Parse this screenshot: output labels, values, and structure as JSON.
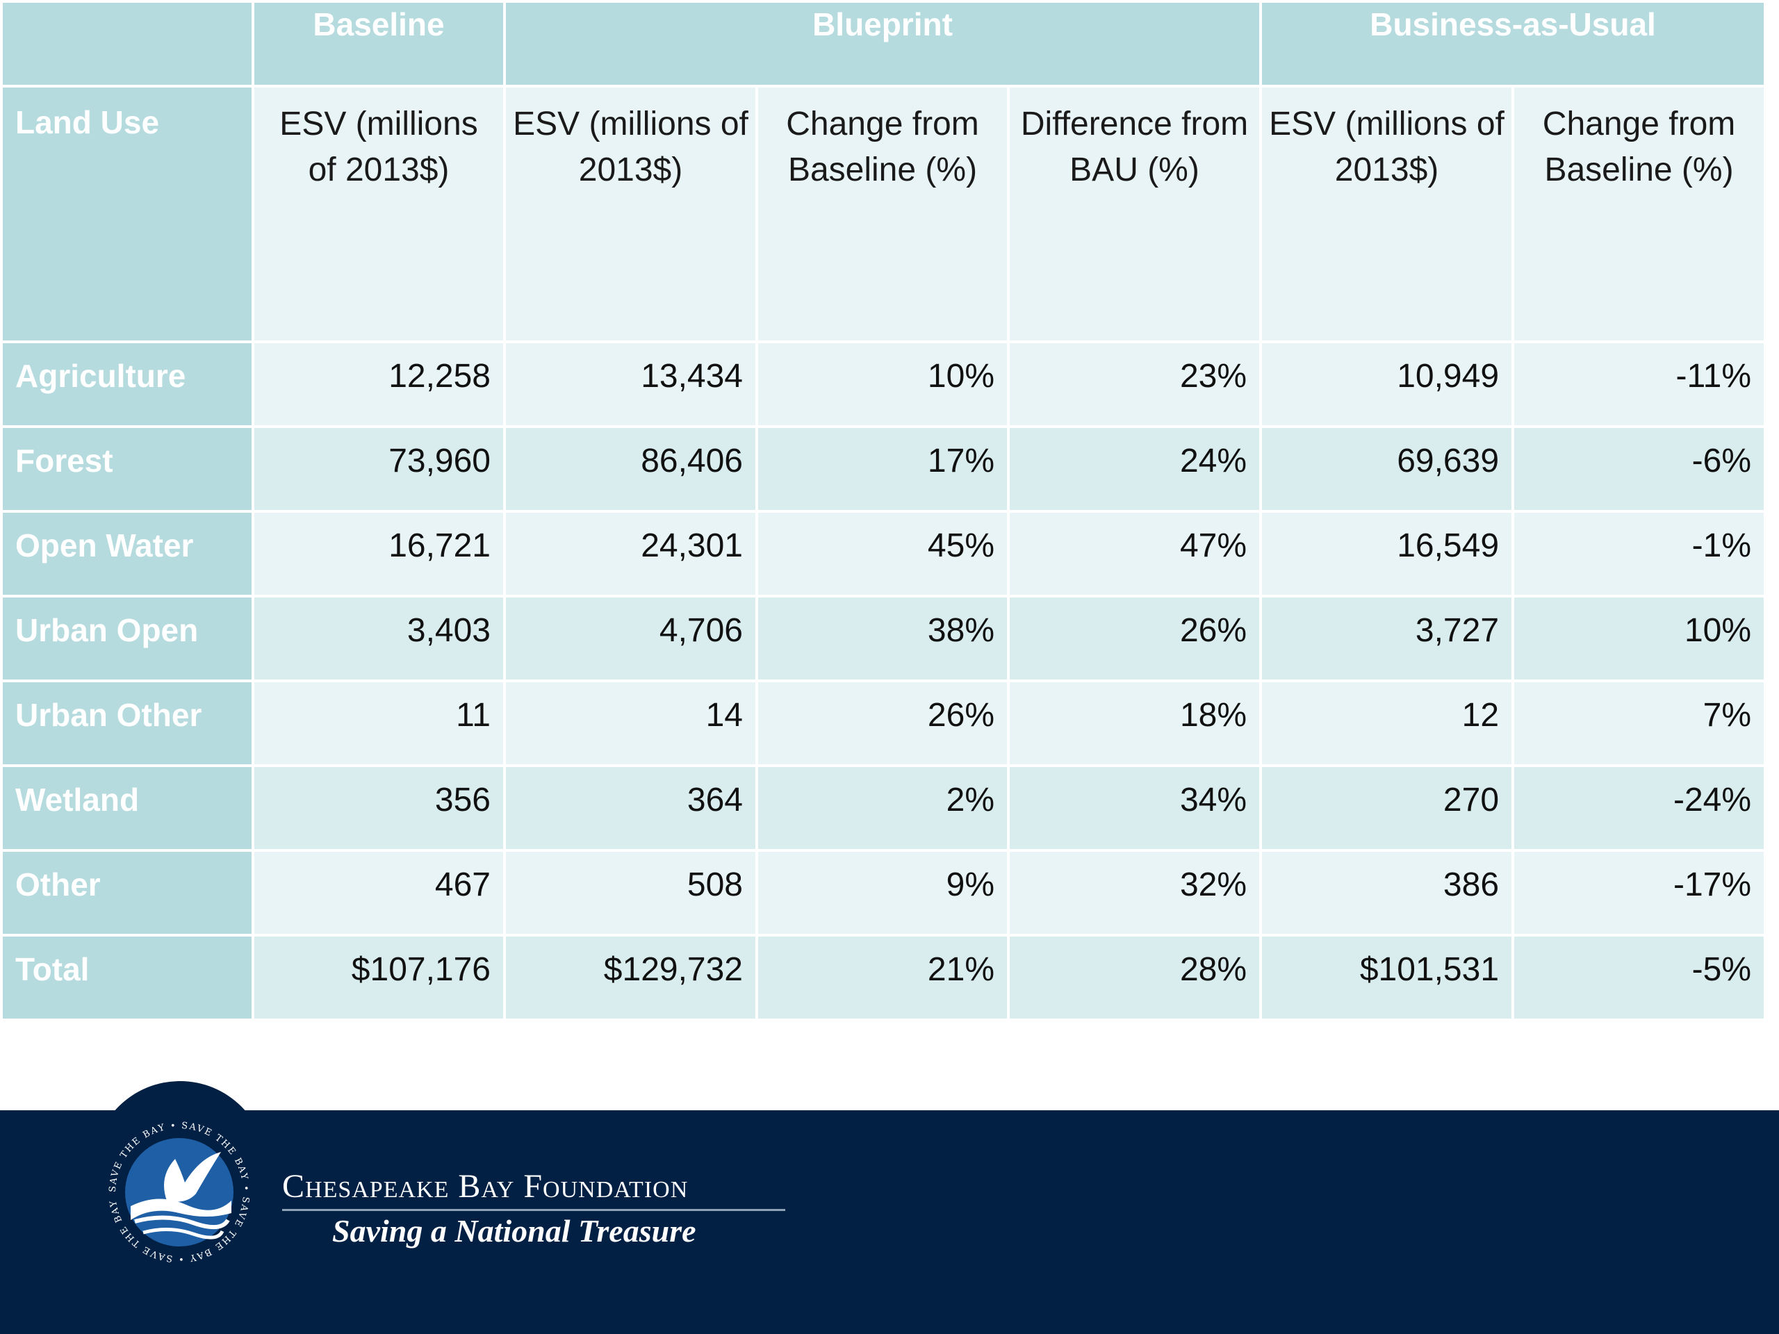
{
  "table": {
    "group_headers": [
      "Baseline",
      "Blueprint",
      "Business-as-Usual"
    ],
    "first_col_header": "Land Use",
    "sub_headers": [
      "ESV (millions of 2013$)",
      "ESV (millions of 2013$)",
      "Change from Baseline (%)",
      "Difference from BAU (%)",
      "ESV (millions of 2013$)",
      "Change from Baseline (%)"
    ],
    "rows": [
      {
        "land_use": "Agriculture",
        "values": [
          "12,258",
          "13,434",
          "10%",
          "23%",
          "10,949",
          "-11%"
        ]
      },
      {
        "land_use": "Forest",
        "values": [
          "73,960",
          "86,406",
          "17%",
          "24%",
          "69,639",
          "-6%"
        ]
      },
      {
        "land_use": "Open Water",
        "values": [
          "16,721",
          "24,301",
          "45%",
          "47%",
          "16,549",
          "-1%"
        ]
      },
      {
        "land_use": "Urban Open",
        "values": [
          "3,403",
          "4,706",
          "38%",
          "26%",
          "3,727",
          "10%"
        ]
      },
      {
        "land_use": "Urban Other",
        "values": [
          "11",
          "14",
          "26%",
          "18%",
          "12",
          "7%"
        ]
      },
      {
        "land_use": "Wetland",
        "values": [
          "356",
          "364",
          "2%",
          "34%",
          "270",
          "-24%"
        ]
      },
      {
        "land_use": "Other",
        "values": [
          "467",
          "508",
          "9%",
          "32%",
          "386",
          "-17%"
        ]
      },
      {
        "land_use": "Total",
        "values": [
          "$107,176",
          "$129,732",
          "21%",
          "28%",
          "$101,531",
          "-5%"
        ]
      }
    ]
  },
  "footer": {
    "brand_name": "Chesapeake Bay Foundation",
    "tagline": "Saving a National Treasure",
    "seal_text": "SAVE THE BAY • SAVE THE BAY • SAVE THE BAY • SAVE THE BAY •",
    "colors": {
      "footer_bg": "#012044",
      "header_teal": "#b5dbde",
      "cell_light": "#e8f4f5",
      "seal_blue": "#1f5fa6"
    }
  }
}
